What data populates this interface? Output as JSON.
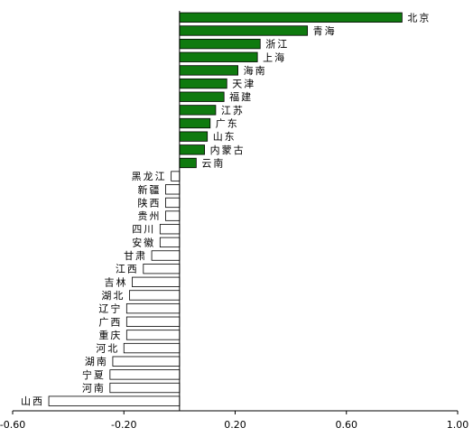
{
  "chart_data": {
    "type": "bar",
    "orientation": "horizontal",
    "categories": [
      "北京",
      "青海",
      "浙江",
      "上海",
      "海南",
      "天津",
      "福建",
      "江苏",
      "广东",
      "山东",
      "内蒙古",
      "云南",
      "黑龙江",
      "新疆",
      "陕西",
      "贵州",
      "四川",
      "安徽",
      "甘肃",
      "江西",
      "吉林",
      "湖北",
      "辽宁",
      "广西",
      "重庆",
      "河北",
      "湖南",
      "宁夏",
      "河南",
      "山西"
    ],
    "values": [
      0.8,
      0.46,
      0.29,
      0.28,
      0.21,
      0.17,
      0.16,
      0.13,
      0.11,
      0.1,
      0.09,
      0.06,
      -0.03,
      -0.05,
      -0.05,
      -0.05,
      -0.07,
      -0.07,
      -0.1,
      -0.13,
      -0.17,
      -0.18,
      -0.19,
      -0.19,
      -0.19,
      -0.2,
      -0.24,
      -0.25,
      -0.25,
      -0.47
    ],
    "xlim": [
      -0.6,
      1.0
    ],
    "xticks": [
      -0.6,
      -0.2,
      0.2,
      0.6,
      1.0
    ],
    "xtick_labels": [
      "-0.60",
      "-0.20",
      "0.20",
      "0.60",
      "1.00"
    ],
    "title": "",
    "xlabel": "",
    "ylabel": "",
    "grid": false,
    "legend": "none",
    "colors": {
      "positive": "#0f7a0f",
      "negative": "#ffffff",
      "bar_stroke": "#000000",
      "axis": "#000000"
    }
  }
}
